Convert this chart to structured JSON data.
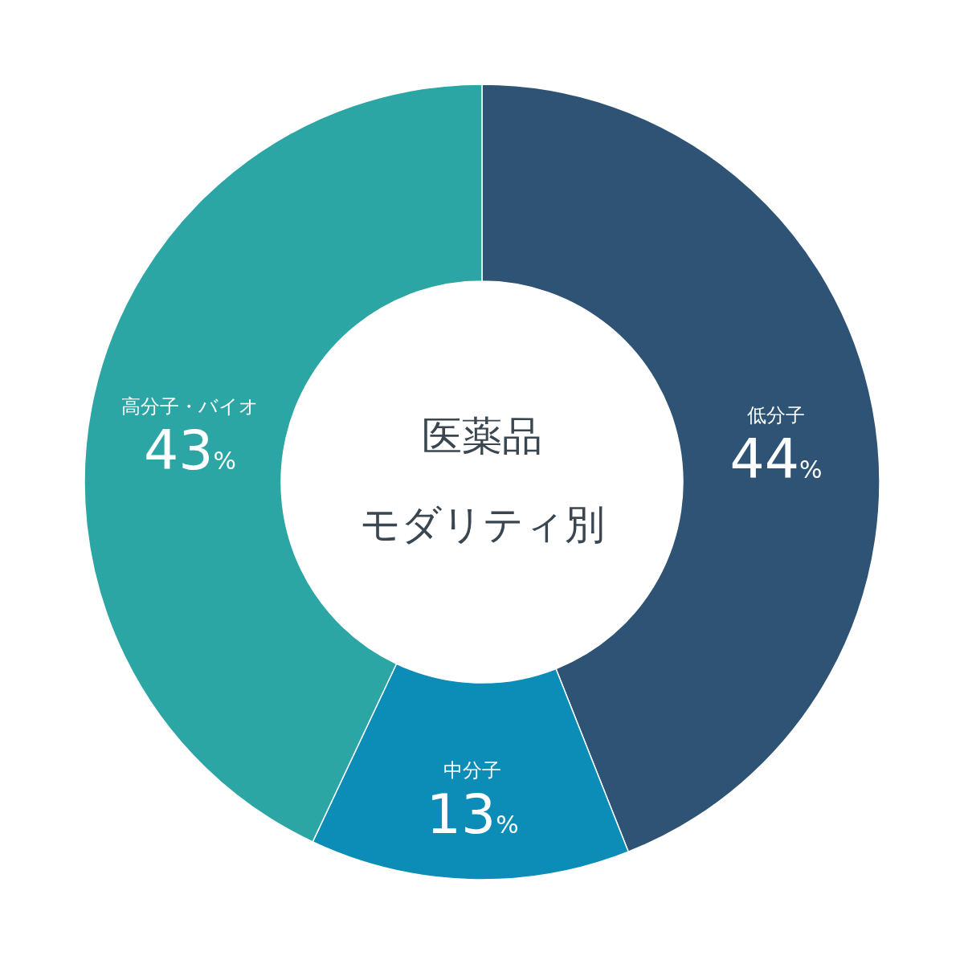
{
  "chart_data": {
    "type": "donut",
    "title": "医薬品",
    "subtitle": "モダリティ別",
    "categories": [
      "低分子",
      "中分子",
      "高分子・バイオ"
    ],
    "values": [
      44,
      13,
      43
    ],
    "colors": [
      "#2e5374",
      "#0b8db8",
      "#2ba6a4"
    ],
    "value_labels": [
      "44%",
      "13%",
      "43%"
    ]
  }
}
